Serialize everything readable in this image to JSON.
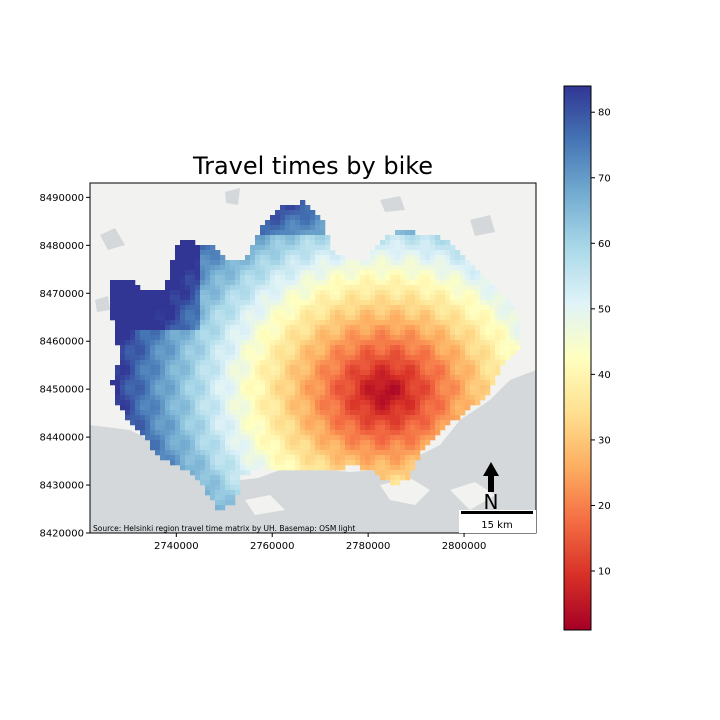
{
  "title": "Travel times by bike",
  "source_note": "Source: Helsinki region travel time matrix by UH. Basemap: OSM light",
  "north_label": "N",
  "scalebar_label": "15 km",
  "x_ticks": [
    {
      "value": 2740000,
      "label": "2740000"
    },
    {
      "value": 2760000,
      "label": "2760000"
    },
    {
      "value": 2780000,
      "label": "2780000"
    },
    {
      "value": 2800000,
      "label": "2800000"
    }
  ],
  "y_ticks": [
    {
      "value": 8420000,
      "label": "8420000"
    },
    {
      "value": 8430000,
      "label": "8430000"
    },
    {
      "value": 8440000,
      "label": "8440000"
    },
    {
      "value": 8450000,
      "label": "8450000"
    },
    {
      "value": 8460000,
      "label": "8460000"
    },
    {
      "value": 8470000,
      "label": "8470000"
    },
    {
      "value": 8480000,
      "label": "8480000"
    },
    {
      "value": 8490000,
      "label": "8490000"
    }
  ],
  "colorbar": {
    "colormap": "RdYlBu",
    "min": 1,
    "max": 84,
    "ticks": [
      {
        "value": 10,
        "label": "10"
      },
      {
        "value": 20,
        "label": "20"
      },
      {
        "value": 30,
        "label": "30"
      },
      {
        "value": 40,
        "label": "40"
      },
      {
        "value": 50,
        "label": "50"
      },
      {
        "value": 60,
        "label": "60"
      },
      {
        "value": 70,
        "label": "70"
      },
      {
        "value": 80,
        "label": "80"
      }
    ]
  },
  "chart_data": {
    "type": "heatmap",
    "title": "Travel times by bike",
    "xlim": [
      2722000,
      2815000
    ],
    "ylim": [
      8420000,
      8493000
    ],
    "value_range": [
      1,
      84
    ],
    "colormap": "RdYlBu",
    "grid": false,
    "colorbar_position": "right"
  }
}
